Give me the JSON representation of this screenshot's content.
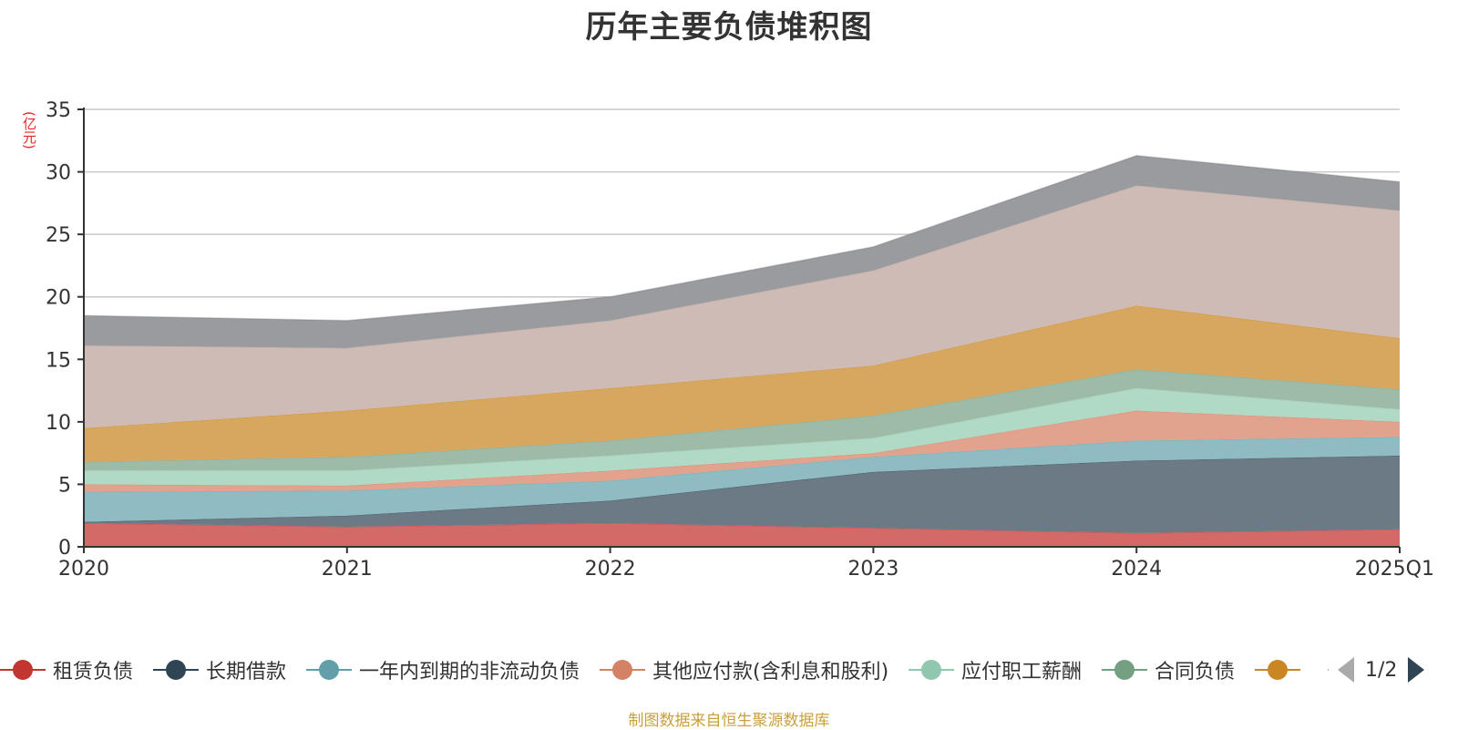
{
  "title": "历年主要负债堆积图",
  "unit_label": "(亿元)",
  "source_note": "制图数据来自恒生聚源数据库",
  "legend_pager": {
    "text": "1/2"
  },
  "chart_data": {
    "type": "area",
    "stacked": true,
    "title": "历年主要负债堆积图",
    "ylabel": "(亿元)",
    "xlabel": "",
    "x": [
      "2020",
      "2021",
      "2022",
      "2023",
      "2024",
      "2025Q1"
    ],
    "ylim": [
      0,
      35
    ],
    "yticks": [
      0,
      5,
      10,
      15,
      20,
      25,
      30,
      35
    ],
    "grid": true,
    "legend_position": "bottom",
    "series": [
      {
        "name": "租赁负债",
        "color": "#c23531",
        "fill": "#d46a68",
        "values": [
          1.9,
          1.6,
          1.9,
          1.5,
          1.1,
          1.4
        ]
      },
      {
        "name": "长期借款",
        "color": "#2f4554",
        "fill": "#6c7a85",
        "values": [
          0.1,
          0.9,
          1.8,
          4.5,
          5.8,
          5.9
        ]
      },
      {
        "name": "一年内到期的非流动负债",
        "color": "#61a0a8",
        "fill": "#8fbcc3",
        "values": [
          2.4,
          2.0,
          1.6,
          1.2,
          1.6,
          1.5
        ]
      },
      {
        "name": "其他应付款(含利息和股利)",
        "color": "#d48265",
        "fill": "#e1a38e",
        "values": [
          0.6,
          0.4,
          0.8,
          0.3,
          2.4,
          1.2
        ]
      },
      {
        "name": "应付职工薪酬",
        "color": "#91c7ae",
        "fill": "#b0d9c6",
        "values": [
          1.1,
          1.2,
          1.2,
          1.2,
          1.8,
          1.0
        ]
      },
      {
        "name": "合同负债",
        "color": "#749f83",
        "fill": "#9ebba8",
        "values": [
          0.7,
          1.1,
          1.2,
          1.8,
          1.5,
          1.6
        ]
      },
      {
        "name": "",
        "color": "#ca8622",
        "fill": "#d8a75f",
        "values": [
          2.7,
          3.7,
          4.2,
          4.0,
          5.1,
          4.1
        ]
      },
      {
        "name": "",
        "color": "#bda29a",
        "fill": "#cfbbb5",
        "values": [
          6.6,
          5.0,
          5.4,
          7.6,
          9.6,
          10.2
        ]
      },
      {
        "name": "",
        "color": "#6e7074",
        "fill": "#9a9b9f",
        "values": [
          2.4,
          2.2,
          1.9,
          1.9,
          2.4,
          2.3
        ]
      }
    ]
  }
}
